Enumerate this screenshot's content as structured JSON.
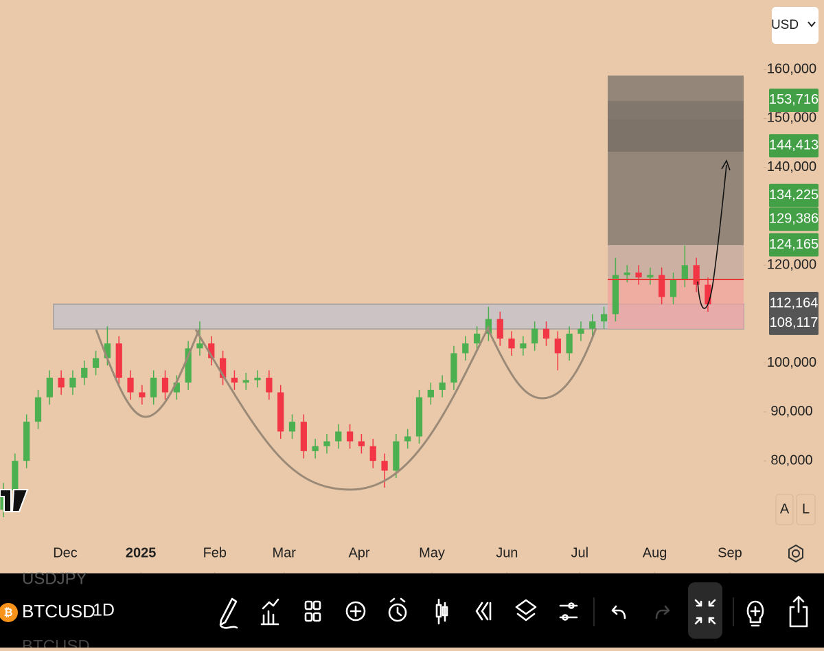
{
  "chart_data": {
    "type": "candlestick",
    "open": [
      70000,
      74000,
      80000,
      88000,
      93000,
      97000,
      95000,
      97000,
      99000,
      101000,
      104000,
      97000,
      94000,
      93000,
      97000,
      94000,
      96000,
      103000,
      104000,
      101000,
      97000,
      96000,
      96500,
      97000,
      94000,
      86000,
      88000,
      82000,
      83000,
      84000,
      86000,
      84000,
      83000,
      80000,
      78000,
      84000,
      85000,
      93000,
      94500,
      96000,
      102000,
      104000,
      106000,
      109000,
      105000,
      103000,
      104000,
      107000,
      105000,
      102000,
      106000,
      107000,
      108500,
      110000,
      118000,
      118500,
      117500,
      118000,
      113500,
      117000,
      120000,
      116000
    ],
    "high": [
      75500,
      81500,
      89500,
      94500,
      98500,
      98500,
      98500,
      100500,
      102500,
      107500,
      105500,
      98500,
      95500,
      98500,
      98500,
      97500,
      104500,
      108500,
      105500,
      102500,
      98500,
      98000,
      98500,
      98500,
      95500,
      89500,
      89500,
      84500,
      85500,
      87500,
      87500,
      85500,
      84500,
      81500,
      85500,
      86500,
      94500,
      96000,
      97500,
      103500,
      105500,
      107500,
      111500,
      110500,
      106500,
      105500,
      108500,
      108500,
      106500,
      107500,
      108500,
      110000,
      111500,
      121500,
      120000,
      120000,
      119500,
      119500,
      118500,
      124000,
      121500,
      117500
    ],
    "low": [
      68500,
      72500,
      78500,
      86500,
      91500,
      93500,
      93500,
      95500,
      97500,
      99500,
      95500,
      92500,
      91500,
      91500,
      92500,
      92500,
      94500,
      101500,
      99500,
      95500,
      94500,
      94500,
      95000,
      92500,
      84500,
      84500,
      80500,
      80500,
      81500,
      82500,
      82500,
      81500,
      78500,
      74500,
      76500,
      82500,
      83500,
      91500,
      93000,
      94500,
      100500,
      102500,
      104500,
      103500,
      101500,
      101500,
      102500,
      103500,
      98500,
      100500,
      104500,
      105500,
      107000,
      108500,
      116500,
      116000,
      116000,
      112000,
      112000,
      115500,
      114500,
      110500
    ],
    "close": [
      74000,
      80000,
      88000,
      93000,
      97000,
      95000,
      97000,
      99000,
      101000,
      104000,
      97000,
      94000,
      93000,
      97000,
      94000,
      96000,
      103000,
      104000,
      101000,
      97000,
      96000,
      96500,
      97000,
      94000,
      86000,
      88000,
      82000,
      83000,
      84000,
      86000,
      84000,
      83000,
      80000,
      78000,
      84000,
      85000,
      93000,
      94500,
      96000,
      102000,
      104000,
      106000,
      109000,
      105000,
      103000,
      104000,
      107000,
      105000,
      102000,
      106000,
      107000,
      108500,
      110000,
      118000,
      118500,
      117500,
      118000,
      113500,
      117000,
      120000,
      116000,
      112000
    ],
    "up_color": "#4caf50",
    "down_color": "#f23645",
    "xlim": [
      0,
      66
    ],
    "xticks": [
      {
        "value": 5.65,
        "label": "Dec"
      },
      {
        "value": 12.2,
        "label": "2025",
        "bold": true
      },
      {
        "value": 18.6,
        "label": "Feb"
      },
      {
        "value": 24.6,
        "label": "Mar"
      },
      {
        "value": 31.1,
        "label": "Apr"
      },
      {
        "value": 37.4,
        "label": "May"
      },
      {
        "value": 43.9,
        "label": "Jun"
      },
      {
        "value": 50.2,
        "label": "Jul"
      },
      {
        "value": 56.7,
        "label": "Aug"
      },
      {
        "value": 63.2,
        "label": "Sep"
      }
    ],
    "ylim": [
      57000,
      174200
    ],
    "yticks": [
      {
        "value": 80000,
        "label": "80,000"
      },
      {
        "value": 90000,
        "label": "90,000"
      },
      {
        "value": 100000,
        "label": "100,000"
      },
      {
        "value": 120000,
        "label": "120,000"
      },
      {
        "value": 140000,
        "label": "140,000"
      },
      {
        "value": 150000,
        "label": "150,000"
      },
      {
        "value": 160000,
        "label": "160,000"
      }
    ],
    "price_tags": [
      {
        "value": 153716,
        "label": "153,716",
        "color": "#43a047"
      },
      {
        "value": 144413,
        "label": "144,413",
        "color": "#43a047"
      },
      {
        "value": 134225,
        "label": "134,225",
        "color": "#43a047"
      },
      {
        "value": 129386,
        "label": "129,386",
        "color": "#43a047"
      },
      {
        "value": 124165,
        "label": "124,165",
        "color": "#43a047"
      },
      {
        "value": 112164,
        "label": "112,164",
        "color": "#555555"
      },
      {
        "value": 108117,
        "label": "108,117",
        "color": "#555555"
      }
    ]
  },
  "currency": "USD",
  "scale_buttons": [
    "A",
    "L"
  ],
  "toolbar": {
    "prev_symbol": "USDJPY",
    "symbol": "BTCUSD",
    "next_symbol": "BTCUSD",
    "interval": "1D"
  }
}
